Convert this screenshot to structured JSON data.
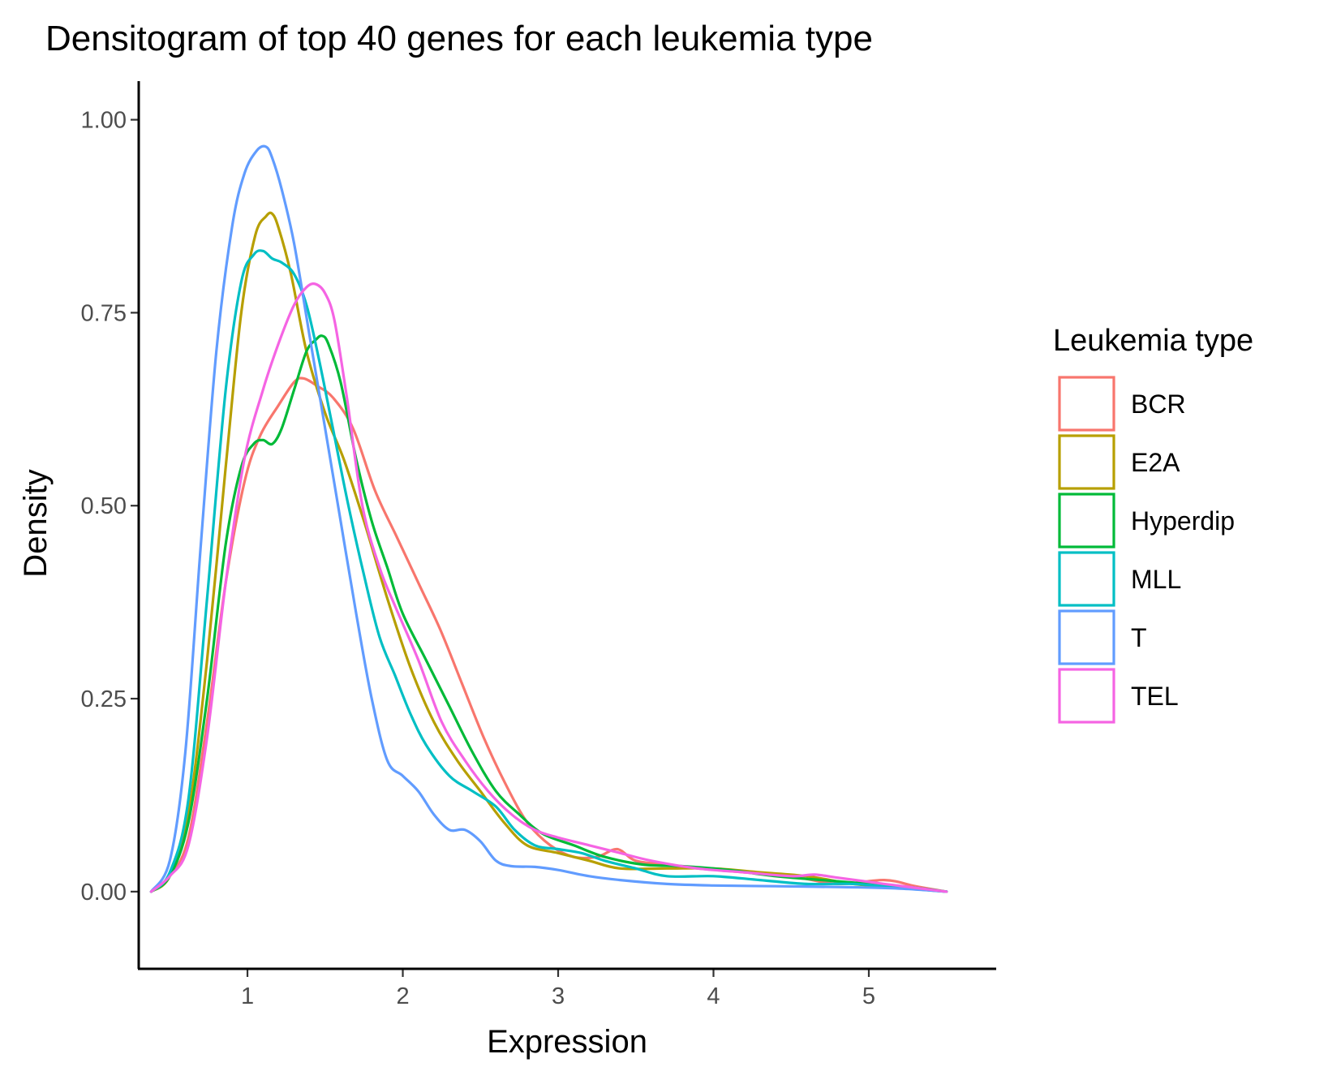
{
  "chart_data": {
    "type": "line",
    "title": "Densitogram of top 40 genes for each leukemia type",
    "xlabel": "Expression",
    "ylabel": "Density",
    "xlim": [
      0.3,
      5.82
    ],
    "ylim": [
      -0.1,
      1.05
    ],
    "xticks": [
      1,
      2,
      3,
      4,
      5
    ],
    "yticks": [
      0.0,
      0.25,
      0.5,
      0.75,
      1.0
    ],
    "ytick_labels": [
      "0.00",
      "0.25",
      "0.50",
      "0.75",
      "1.00"
    ],
    "xtick_labels": [
      "1",
      "2",
      "3",
      "4",
      "5"
    ],
    "legend": {
      "title": "Leukemia type",
      "position": "right"
    },
    "series": [
      {
        "name": "BCR",
        "color": "#F8766D",
        "x": [
          0.38,
          0.5,
          0.62,
          0.74,
          0.86,
          0.98,
          1.08,
          1.2,
          1.3,
          1.36,
          1.45,
          1.55,
          1.68,
          1.82,
          1.96,
          2.1,
          2.24,
          2.38,
          2.52,
          2.66,
          2.8,
          2.95,
          3.1,
          3.25,
          3.38,
          3.5,
          3.7,
          3.9,
          4.2,
          4.5,
          4.8,
          5.1,
          5.3,
          5.5
        ],
        "y": [
          0.0,
          0.02,
          0.07,
          0.22,
          0.4,
          0.53,
          0.59,
          0.63,
          0.66,
          0.665,
          0.655,
          0.64,
          0.6,
          0.52,
          0.46,
          0.4,
          0.34,
          0.27,
          0.2,
          0.14,
          0.09,
          0.06,
          0.045,
          0.045,
          0.055,
          0.04,
          0.035,
          0.03,
          0.025,
          0.02,
          0.01,
          0.015,
          0.007,
          0.0
        ]
      },
      {
        "name": "E2A",
        "color": "#B79F00",
        "x": [
          0.38,
          0.5,
          0.62,
          0.74,
          0.86,
          0.96,
          1.05,
          1.12,
          1.16,
          1.2,
          1.28,
          1.38,
          1.5,
          1.62,
          1.75,
          1.9,
          2.05,
          2.2,
          2.35,
          2.5,
          2.65,
          2.8,
          3.0,
          3.2,
          3.4,
          3.7,
          4.0,
          4.3,
          4.6,
          4.9,
          5.2,
          5.5
        ],
        "y": [
          0.0,
          0.02,
          0.1,
          0.3,
          0.55,
          0.75,
          0.85,
          0.875,
          0.878,
          0.86,
          0.8,
          0.7,
          0.62,
          0.56,
          0.48,
          0.38,
          0.29,
          0.22,
          0.17,
          0.13,
          0.09,
          0.06,
          0.05,
          0.04,
          0.03,
          0.03,
          0.03,
          0.025,
          0.02,
          0.01,
          0.005,
          0.0
        ]
      },
      {
        "name": "Hyperdip",
        "color": "#00BA38",
        "x": [
          0.38,
          0.5,
          0.62,
          0.74,
          0.86,
          0.96,
          1.04,
          1.1,
          1.16,
          1.22,
          1.3,
          1.38,
          1.44,
          1.48,
          1.52,
          1.6,
          1.7,
          1.8,
          1.9,
          2.0,
          2.15,
          2.3,
          2.45,
          2.6,
          2.75,
          2.9,
          3.1,
          3.3,
          3.55,
          3.8,
          4.1,
          4.4,
          4.7,
          5.0,
          5.3,
          5.5
        ],
        "y": [
          0.0,
          0.02,
          0.09,
          0.25,
          0.45,
          0.55,
          0.58,
          0.585,
          0.58,
          0.6,
          0.65,
          0.7,
          0.715,
          0.72,
          0.71,
          0.66,
          0.56,
          0.48,
          0.42,
          0.36,
          0.3,
          0.24,
          0.18,
          0.13,
          0.1,
          0.075,
          0.06,
          0.045,
          0.035,
          0.033,
          0.028,
          0.02,
          0.015,
          0.01,
          0.005,
          0.0
        ]
      },
      {
        "name": "MLL",
        "color": "#00BFC4",
        "x": [
          0.38,
          0.5,
          0.62,
          0.74,
          0.86,
          0.96,
          1.04,
          1.1,
          1.16,
          1.22,
          1.3,
          1.38,
          1.46,
          1.55,
          1.65,
          1.75,
          1.85,
          1.95,
          2.05,
          2.15,
          2.3,
          2.45,
          2.6,
          2.72,
          2.85,
          3.0,
          3.15,
          3.3,
          3.5,
          3.7,
          4.0,
          4.3,
          4.6,
          4.9,
          5.2,
          5.5
        ],
        "y": [
          0.0,
          0.025,
          0.12,
          0.38,
          0.65,
          0.79,
          0.825,
          0.83,
          0.82,
          0.815,
          0.8,
          0.76,
          0.69,
          0.6,
          0.5,
          0.41,
          0.33,
          0.28,
          0.23,
          0.19,
          0.15,
          0.13,
          0.11,
          0.08,
          0.06,
          0.055,
          0.05,
          0.04,
          0.03,
          0.02,
          0.02,
          0.015,
          0.01,
          0.01,
          0.005,
          0.0
        ]
      },
      {
        "name": "T",
        "color": "#619CFF",
        "x": [
          0.38,
          0.5,
          0.6,
          0.7,
          0.8,
          0.9,
          0.98,
          1.06,
          1.12,
          1.16,
          1.22,
          1.3,
          1.4,
          1.5,
          1.6,
          1.7,
          1.8,
          1.9,
          2.0,
          2.1,
          2.2,
          2.3,
          2.4,
          2.5,
          2.6,
          2.7,
          2.85,
          3.0,
          3.2,
          3.4,
          3.7,
          4.0,
          4.4,
          4.8,
          5.2,
          5.5
        ],
        "y": [
          0.0,
          0.04,
          0.18,
          0.45,
          0.7,
          0.86,
          0.93,
          0.96,
          0.965,
          0.95,
          0.91,
          0.84,
          0.72,
          0.6,
          0.48,
          0.36,
          0.25,
          0.17,
          0.15,
          0.13,
          0.1,
          0.08,
          0.08,
          0.065,
          0.04,
          0.033,
          0.032,
          0.028,
          0.02,
          0.015,
          0.01,
          0.008,
          0.007,
          0.006,
          0.004,
          0.0
        ]
      },
      {
        "name": "TEL",
        "color": "#F564E3",
        "x": [
          0.38,
          0.5,
          0.62,
          0.74,
          0.86,
          0.98,
          1.1,
          1.2,
          1.3,
          1.38,
          1.44,
          1.5,
          1.56,
          1.64,
          1.74,
          1.85,
          1.95,
          2.1,
          2.25,
          2.4,
          2.55,
          2.7,
          2.85,
          3.0,
          3.2,
          3.4,
          3.6,
          3.9,
          4.2,
          4.5,
          4.65,
          4.8,
          5.1,
          5.3,
          5.5
        ],
        "y": [
          0.0,
          0.02,
          0.06,
          0.2,
          0.4,
          0.56,
          0.65,
          0.71,
          0.76,
          0.783,
          0.787,
          0.775,
          0.74,
          0.64,
          0.5,
          0.42,
          0.37,
          0.3,
          0.22,
          0.17,
          0.13,
          0.1,
          0.08,
          0.07,
          0.06,
          0.05,
          0.04,
          0.03,
          0.025,
          0.02,
          0.022,
          0.018,
          0.01,
          0.005,
          0.0
        ]
      }
    ]
  }
}
